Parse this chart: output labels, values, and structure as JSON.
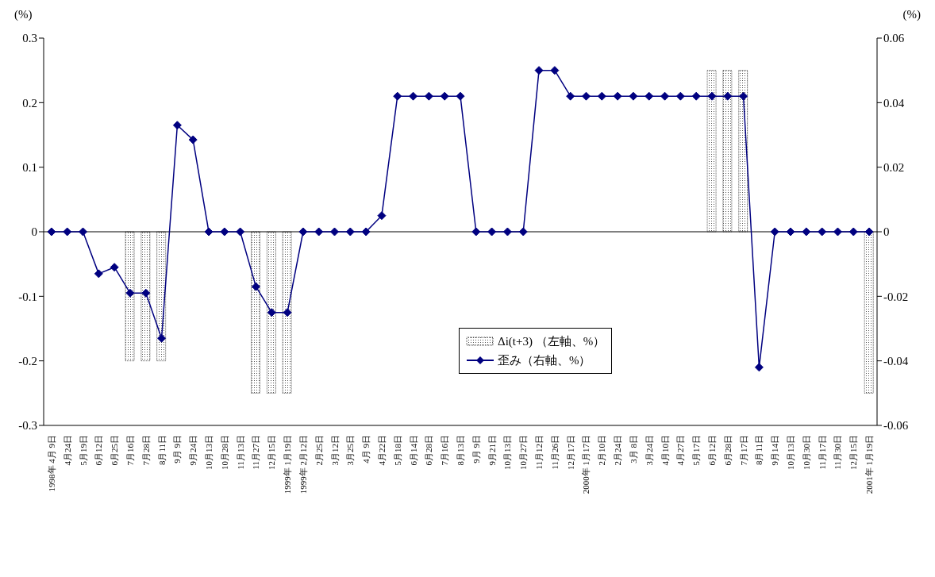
{
  "chart_data": {
    "type": "line",
    "ylabel": "(%)",
    "y2label": "(%)",
    "categories": [
      "1998年 4月 9日",
      "4月24日",
      "5月19日",
      "6月12日",
      "6月25日",
      "7月16日",
      "7月28日",
      "8月11日",
      "9月 9日",
      "9月24日",
      "10月13日",
      "10月28日",
      "11月13日",
      "11月27日",
      "12月15日",
      "1999年 1月19日",
      "1999年 2月12日",
      "2月25日",
      "3月12日",
      "3月25日",
      "4月 9日",
      "4月22日",
      "5月18日",
      "6月14日",
      "6月28日",
      "7月16日",
      "8月13日",
      "9月 9日",
      "9月21日",
      "10月13日",
      "10月27日",
      "11月12日",
      "11月26日",
      "12月17日",
      "2000年 1月17日",
      "2月10日",
      "2月24日",
      "3月 8日",
      "3月24日",
      "4月10日",
      "4月27日",
      "5月17日",
      "6月12日",
      "6月28日",
      "7月17日",
      "8月11日",
      "9月14日",
      "10月13日",
      "10月30日",
      "11月17日",
      "11月30日",
      "12月15日",
      "2001年 1月19日"
    ],
    "series": [
      {
        "name": "Δi(t+3) （左軸、%）",
        "type": "bar",
        "color": "#555555",
        "values": [
          0,
          0,
          0,
          0,
          0,
          -0.2,
          -0.2,
          -0.2,
          0,
          0,
          0,
          0,
          0,
          -0.25,
          -0.25,
          -0.25,
          0,
          0,
          0,
          0,
          0,
          0,
          0,
          0,
          0,
          0,
          0,
          0,
          0,
          0,
          0,
          0,
          0,
          0,
          0,
          0,
          0,
          0,
          0,
          0,
          0,
          0,
          0.25,
          0.25,
          0.25,
          0,
          0,
          0,
          0,
          0,
          0,
          0,
          -0.25
        ]
      },
      {
        "name": "歪み（右軸、%）",
        "axis": "y2",
        "color": "#000080",
        "marker": "diamond",
        "values": [
          0,
          0,
          0,
          -0.013,
          -0.011,
          -0.019,
          -0.019,
          -0.033,
          0.033,
          0.0285,
          0,
          0,
          0,
          -0.017,
          -0.025,
          -0.025,
          0,
          0,
          0,
          0,
          0,
          0.005,
          0.042,
          0.042,
          0.042,
          0.042,
          0.042,
          0,
          0,
          0,
          0,
          0.05,
          0.05,
          0.042,
          0.042,
          0.042,
          0.042,
          0.042,
          0.042,
          0.042,
          0.042,
          0.042,
          0.042,
          0.042,
          0.042,
          -0.042,
          0,
          0,
          0,
          0,
          0,
          0,
          0
        ]
      }
    ],
    "ylim": [
      -0.3,
      0.3
    ],
    "yticks": [
      -0.3,
      -0.2,
      -0.1,
      0,
      0.1,
      0.2,
      0.3
    ],
    "y2lim": [
      -0.06,
      0.06
    ],
    "y2ticks": [
      -0.06,
      -0.04,
      -0.02,
      0,
      0.02,
      0.04,
      0.06
    ],
    "ref_lines": [
      {
        "axis": "y",
        "value": 0,
        "color": "#000000"
      }
    ],
    "legend": "center"
  }
}
